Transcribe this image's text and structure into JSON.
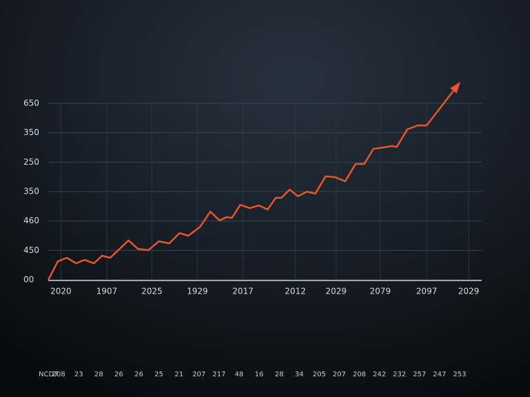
{
  "chart_data": {
    "type": "line",
    "color": "#e8562a",
    "grid": true,
    "xlim": [
      0,
      100
    ],
    "ylim": [
      0,
      6
    ],
    "xticks": [
      {
        "value": 2.9,
        "label": "2020"
      },
      {
        "value": 13.5,
        "label": "1907"
      },
      {
        "value": 23.9,
        "label": "2025"
      },
      {
        "value": 34.4,
        "label": "1929"
      },
      {
        "value": 44.9,
        "label": "2017"
      },
      {
        "value": 57.0,
        "label": "2012"
      },
      {
        "value": 66.4,
        "label": "2029"
      },
      {
        "value": 76.6,
        "label": "2079"
      },
      {
        "value": 87.3,
        "label": "2097"
      },
      {
        "value": 97.0,
        "label": "2029"
      }
    ],
    "yticks": [
      {
        "value": 0,
        "label": "00"
      },
      {
        "value": 1,
        "label": "450"
      },
      {
        "value": 2,
        "label": "460"
      },
      {
        "value": 3,
        "label": "350"
      },
      {
        "value": 4,
        "label": "250"
      },
      {
        "value": 5,
        "label": "350"
      },
      {
        "value": 6,
        "label": "650"
      }
    ],
    "x": [
      0,
      2.2,
      4.3,
      6.4,
      8.4,
      10.5,
      12.4,
      14.3,
      18.5,
      20.7,
      23.1,
      25.5,
      27.9,
      30.3,
      32.3,
      35.0,
      37.4,
      39.5,
      41.1,
      42.4,
      44.3,
      46.5,
      48.6,
      50.6,
      52.5,
      53.8,
      55.7,
      57.6,
      59.7,
      61.6,
      64.0,
      66.2,
      68.5,
      70.9,
      72.9,
      75.0,
      77.2,
      79.3,
      80.4,
      82.8,
      85.2,
      87.3,
      94.7
    ],
    "values": [
      0,
      0.63,
      0.75,
      0.56,
      0.68,
      0.56,
      0.82,
      0.75,
      1.34,
      1.05,
      1.01,
      1.31,
      1.24,
      1.59,
      1.5,
      1.8,
      2.32,
      2.02,
      2.13,
      2.11,
      2.55,
      2.44,
      2.53,
      2.39,
      2.79,
      2.79,
      3.07,
      2.84,
      3.0,
      2.93,
      3.52,
      3.49,
      3.35,
      3.94,
      3.94,
      4.45,
      4.5,
      4.55,
      4.52,
      5.11,
      5.25,
      5.25,
      6.66
    ],
    "footer_labels": [
      "NCD7",
      "208",
      "23",
      "28",
      "26",
      "26",
      "25",
      "21",
      "207",
      "217",
      "48",
      "16",
      "28",
      "34",
      "205",
      "207",
      "208",
      "242",
      "232",
      "257",
      "247",
      "253"
    ]
  }
}
